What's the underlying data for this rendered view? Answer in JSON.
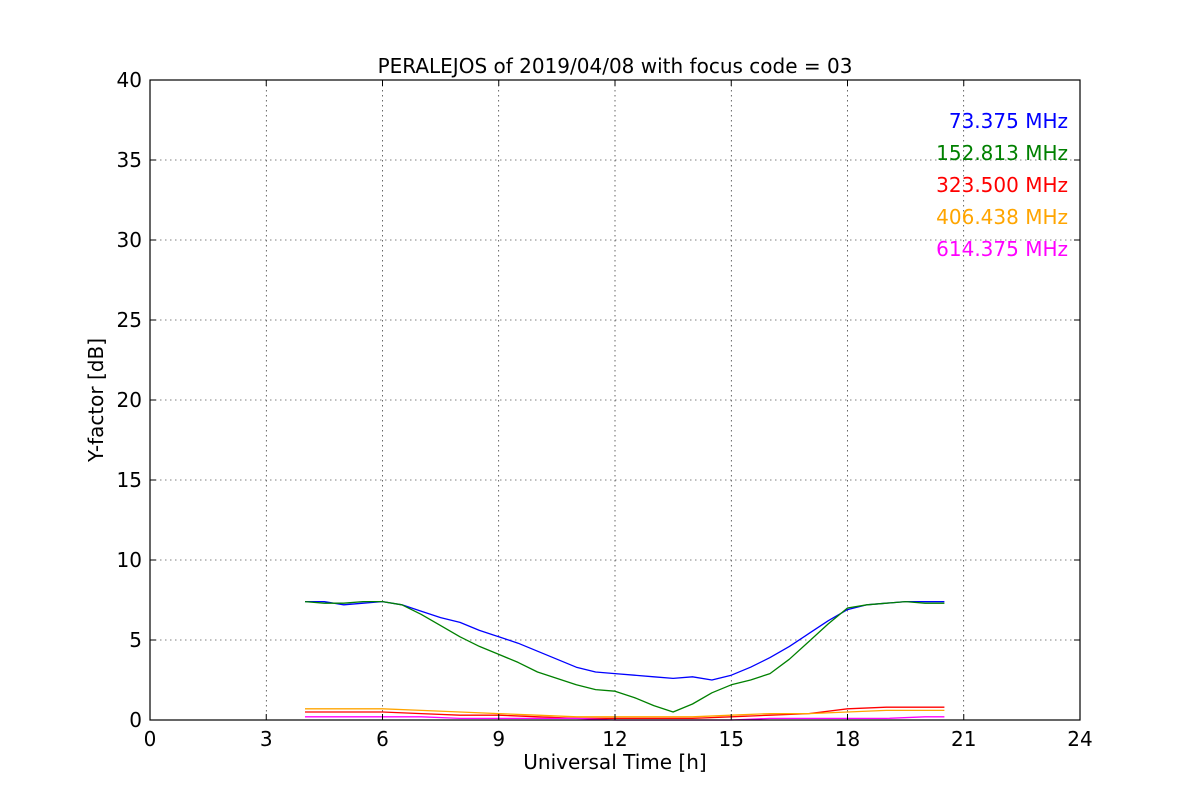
{
  "chart_data": {
    "type": "line",
    "title": "PERALEJOS of 2019/04/08 with focus code = 03",
    "xlabel": "Universal Time [h]",
    "ylabel": "Y-factor [dB]",
    "xlim": [
      0,
      24
    ],
    "ylim": [
      0,
      40
    ],
    "xticks": [
      0,
      3,
      6,
      9,
      12,
      15,
      18,
      21,
      24
    ],
    "yticks": [
      0,
      5,
      10,
      15,
      20,
      25,
      30,
      35,
      40
    ],
    "xtick_labels": [
      "0",
      "3",
      "6",
      "9",
      "12",
      "15",
      "18",
      "21",
      "24"
    ],
    "ytick_labels": [
      "0",
      "5",
      "10",
      "15",
      "20",
      "25",
      "30",
      "35",
      "40"
    ],
    "grid": true,
    "legend_position": "top-right",
    "series": [
      {
        "name": "73.375 MHz",
        "color": "#0000ff",
        "x": [
          4.0,
          4.5,
          5.0,
          5.5,
          6.0,
          6.5,
          7.0,
          7.5,
          8.0,
          8.5,
          9.0,
          9.5,
          10.0,
          10.5,
          11.0,
          11.5,
          12.0,
          12.5,
          13.0,
          13.5,
          14.0,
          14.5,
          15.0,
          15.5,
          16.0,
          16.5,
          17.0,
          17.5,
          18.0,
          18.5,
          19.0,
          19.5,
          20.0,
          20.5
        ],
        "y": [
          7.4,
          7.4,
          7.2,
          7.3,
          7.4,
          7.2,
          6.8,
          6.4,
          6.1,
          5.6,
          5.2,
          4.8,
          4.3,
          3.8,
          3.3,
          3.0,
          2.9,
          2.8,
          2.7,
          2.6,
          2.7,
          2.5,
          2.8,
          3.3,
          3.9,
          4.6,
          5.4,
          6.2,
          6.9,
          7.2,
          7.3,
          7.4,
          7.4,
          7.4
        ]
      },
      {
        "name": "152.813 MHz",
        "color": "#008000",
        "x": [
          4.0,
          4.5,
          5.0,
          5.5,
          6.0,
          6.5,
          7.0,
          7.5,
          8.0,
          8.5,
          9.0,
          9.5,
          10.0,
          10.5,
          11.0,
          11.5,
          12.0,
          12.5,
          13.0,
          13.5,
          14.0,
          14.5,
          15.0,
          15.5,
          16.0,
          16.5,
          17.0,
          17.5,
          18.0,
          18.5,
          19.0,
          19.5,
          20.0,
          20.5
        ],
        "y": [
          7.4,
          7.3,
          7.3,
          7.4,
          7.4,
          7.2,
          6.6,
          5.9,
          5.2,
          4.6,
          4.1,
          3.6,
          3.0,
          2.6,
          2.2,
          1.9,
          1.8,
          1.4,
          0.9,
          0.5,
          1.0,
          1.7,
          2.2,
          2.5,
          2.9,
          3.8,
          4.9,
          6.0,
          7.0,
          7.2,
          7.3,
          7.4,
          7.3,
          7.3
        ]
      },
      {
        "name": "323.500 MHz",
        "color": "#ff0000",
        "x": [
          4.0,
          5.0,
          6.0,
          7.0,
          8.0,
          9.0,
          10.0,
          11.0,
          12.0,
          13.0,
          14.0,
          15.0,
          16.0,
          17.0,
          18.0,
          19.0,
          20.0,
          20.5
        ],
        "y": [
          0.5,
          0.5,
          0.5,
          0.4,
          0.3,
          0.3,
          0.2,
          0.1,
          0.1,
          0.1,
          0.1,
          0.2,
          0.3,
          0.4,
          0.7,
          0.8,
          0.8,
          0.8
        ]
      },
      {
        "name": "406.438 MHz",
        "color": "#ffa500",
        "x": [
          4.0,
          5.0,
          6.0,
          7.0,
          8.0,
          9.0,
          10.0,
          11.0,
          12.0,
          13.0,
          14.0,
          15.0,
          16.0,
          17.0,
          18.0,
          19.0,
          20.0,
          20.5
        ],
        "y": [
          0.7,
          0.7,
          0.7,
          0.6,
          0.5,
          0.4,
          0.3,
          0.2,
          0.2,
          0.2,
          0.2,
          0.3,
          0.4,
          0.4,
          0.5,
          0.6,
          0.6,
          0.6
        ]
      },
      {
        "name": "614.375 MHz",
        "color": "#ff00ff",
        "x": [
          4.0,
          5.0,
          6.0,
          7.0,
          8.0,
          9.0,
          10.0,
          11.0,
          12.0,
          13.0,
          14.0,
          15.0,
          16.0,
          17.0,
          18.0,
          19.0,
          20.0,
          20.5
        ],
        "y": [
          0.2,
          0.2,
          0.2,
          0.2,
          0.1,
          0.1,
          0.1,
          0.1,
          0.0,
          0.0,
          0.0,
          0.0,
          0.1,
          0.1,
          0.1,
          0.1,
          0.2,
          0.2
        ]
      }
    ]
  }
}
